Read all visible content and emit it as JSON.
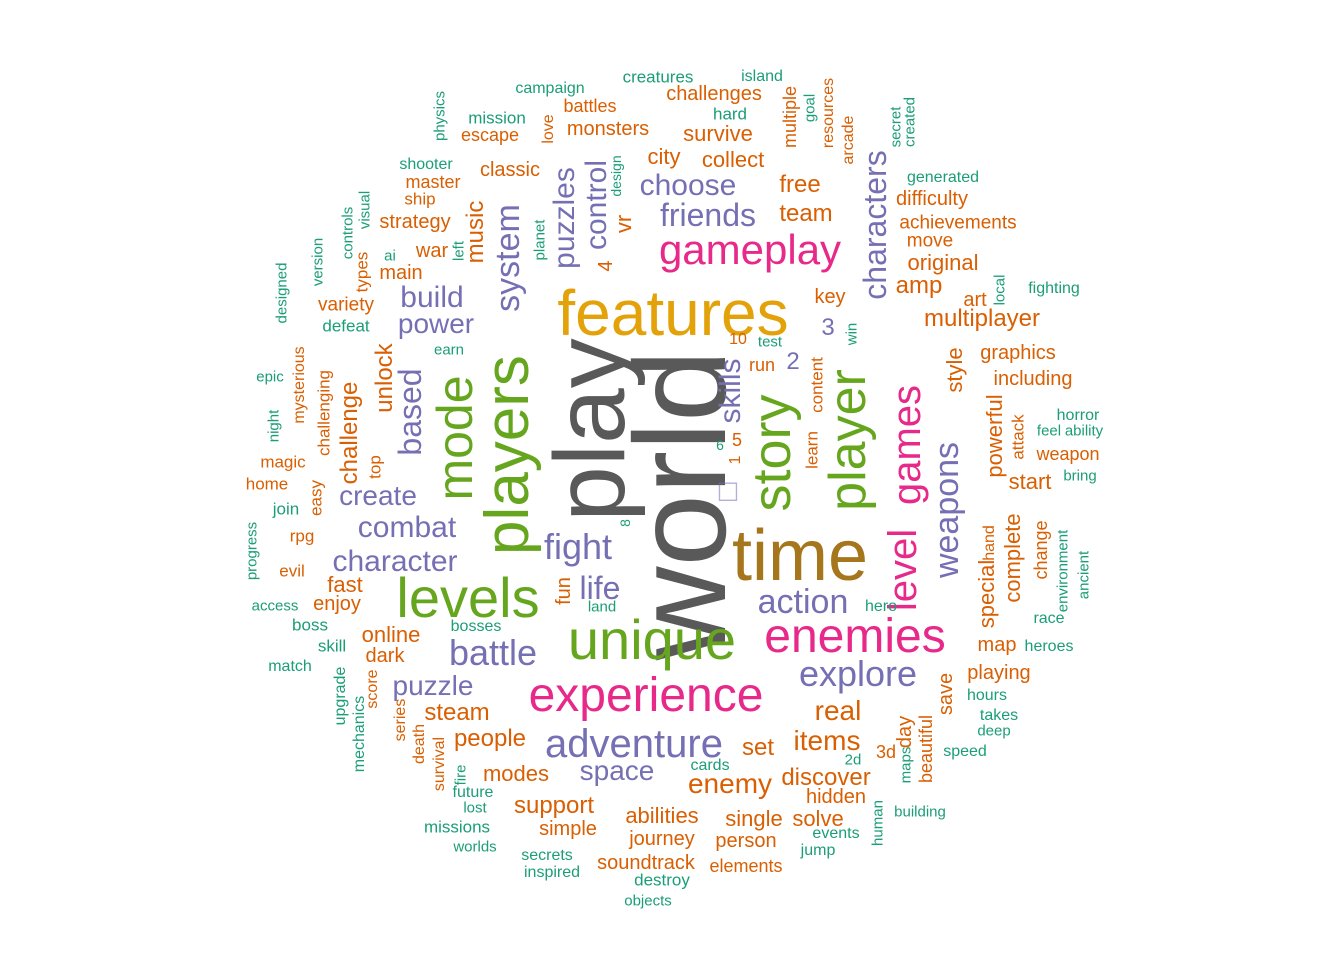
{
  "palette": {
    "dark_gray": "#595959",
    "gold": "#E3A20A",
    "brown": "#A6761D",
    "green": "#66A61E",
    "magenta": "#E7298A",
    "purple": "#7570B3",
    "orange": "#D95F02",
    "teal": "#1B9E77"
  },
  "words": [
    {
      "text": "world",
      "color": "dark_gray"
    },
    {
      "text": "play",
      "color": "dark_gray"
    },
    {
      "text": "features",
      "color": "gold"
    },
    {
      "text": "time",
      "color": "brown"
    },
    {
      "text": "players",
      "color": "green"
    },
    {
      "text": "unique",
      "color": "green"
    },
    {
      "text": "levels",
      "color": "green"
    },
    {
      "text": "mode",
      "color": "green"
    },
    {
      "text": "story",
      "color": "green"
    },
    {
      "text": "player",
      "color": "green"
    },
    {
      "text": "experience",
      "color": "magenta"
    },
    {
      "text": "enemies",
      "color": "magenta"
    },
    {
      "text": "gameplay",
      "color": "magenta"
    },
    {
      "text": "games",
      "color": "magenta"
    },
    {
      "text": "level",
      "color": "magenta"
    },
    {
      "text": "adventure",
      "color": "purple"
    },
    {
      "text": "explore",
      "color": "purple"
    },
    {
      "text": "battle",
      "color": "purple"
    },
    {
      "text": "action",
      "color": "purple"
    },
    {
      "text": "fight",
      "color": "purple"
    },
    {
      "text": "life",
      "color": "purple"
    },
    {
      "text": "character",
      "color": "purple"
    },
    {
      "text": "combat",
      "color": "purple"
    },
    {
      "text": "create",
      "color": "purple"
    },
    {
      "text": "based",
      "color": "purple"
    },
    {
      "text": "build",
      "color": "purple"
    },
    {
      "text": "power",
      "color": "purple"
    },
    {
      "text": "system",
      "color": "purple"
    },
    {
      "text": "choose",
      "color": "purple"
    },
    {
      "text": "friends",
      "color": "purple"
    },
    {
      "text": "puzzles",
      "color": "purple"
    },
    {
      "text": "control",
      "color": "purple"
    },
    {
      "text": "characters",
      "color": "purple"
    },
    {
      "text": "weapons",
      "color": "purple"
    },
    {
      "text": "skills",
      "color": "purple"
    },
    {
      "text": "puzzle",
      "color": "purple"
    },
    {
      "text": "space",
      "color": "purple"
    },
    {
      "text": "3",
      "color": "purple"
    },
    {
      "text": "2",
      "color": "purple"
    },
    {
      "text": "□",
      "color": "purple"
    },
    {
      "text": "challenge",
      "color": "orange"
    },
    {
      "text": "unlock",
      "color": "orange"
    },
    {
      "text": "music",
      "color": "orange"
    },
    {
      "text": "vr",
      "color": "orange"
    },
    {
      "text": "4",
      "color": "orange"
    },
    {
      "text": "team",
      "color": "orange"
    },
    {
      "text": "free",
      "color": "orange"
    },
    {
      "text": "collect",
      "color": "orange"
    },
    {
      "text": "city",
      "color": "orange"
    },
    {
      "text": "survive",
      "color": "orange"
    },
    {
      "text": "monsters",
      "color": "orange"
    },
    {
      "text": "battles",
      "color": "orange"
    },
    {
      "text": "challenges",
      "color": "orange"
    },
    {
      "text": "escape",
      "color": "orange"
    },
    {
      "text": "classic",
      "color": "orange"
    },
    {
      "text": "master",
      "color": "orange"
    },
    {
      "text": "ship",
      "color": "orange"
    },
    {
      "text": "strategy",
      "color": "orange"
    },
    {
      "text": "war",
      "color": "orange"
    },
    {
      "text": "main",
      "color": "orange"
    },
    {
      "text": "variety",
      "color": "orange"
    },
    {
      "text": "multiple",
      "color": "orange"
    },
    {
      "text": "love",
      "color": "orange"
    },
    {
      "text": "resources",
      "color": "orange"
    },
    {
      "text": "arcade",
      "color": "orange"
    },
    {
      "text": "difficulty",
      "color": "orange"
    },
    {
      "text": "achievements",
      "color": "orange"
    },
    {
      "text": "move",
      "color": "orange"
    },
    {
      "text": "original",
      "color": "orange"
    },
    {
      "text": "amp",
      "color": "orange"
    },
    {
      "text": "key",
      "color": "orange"
    },
    {
      "text": "art",
      "color": "orange"
    },
    {
      "text": "multiplayer",
      "color": "orange"
    },
    {
      "text": "graphics",
      "color": "orange"
    },
    {
      "text": "style",
      "color": "orange"
    },
    {
      "text": "including",
      "color": "orange"
    },
    {
      "text": "powerful",
      "color": "orange"
    },
    {
      "text": "attack",
      "color": "orange"
    },
    {
      "text": "start",
      "color": "orange"
    },
    {
      "text": "weapon",
      "color": "orange"
    },
    {
      "text": "hand",
      "color": "orange"
    },
    {
      "text": "complete",
      "color": "orange"
    },
    {
      "text": "special",
      "color": "orange"
    },
    {
      "text": "change",
      "color": "orange"
    },
    {
      "text": "map",
      "color": "orange"
    },
    {
      "text": "playing",
      "color": "orange"
    },
    {
      "text": "save",
      "color": "orange"
    },
    {
      "text": "day",
      "color": "orange"
    },
    {
      "text": "beautiful",
      "color": "orange"
    },
    {
      "text": "3d",
      "color": "orange"
    },
    {
      "text": "real",
      "color": "orange"
    },
    {
      "text": "items",
      "color": "orange"
    },
    {
      "text": "set",
      "color": "orange"
    },
    {
      "text": "enemy",
      "color": "orange"
    },
    {
      "text": "discover",
      "color": "orange"
    },
    {
      "text": "hidden",
      "color": "orange"
    },
    {
      "text": "single",
      "color": "orange"
    },
    {
      "text": "solve",
      "color": "orange"
    },
    {
      "text": "person",
      "color": "orange"
    },
    {
      "text": "abilities",
      "color": "orange"
    },
    {
      "text": "journey",
      "color": "orange"
    },
    {
      "text": "soundtrack",
      "color": "orange"
    },
    {
      "text": "elements",
      "color": "orange"
    },
    {
      "text": "support",
      "color": "orange"
    },
    {
      "text": "simple",
      "color": "orange"
    },
    {
      "text": "modes",
      "color": "orange"
    },
    {
      "text": "people",
      "color": "orange"
    },
    {
      "text": "steam",
      "color": "orange"
    },
    {
      "text": "online",
      "color": "orange"
    },
    {
      "text": "dark",
      "color": "orange"
    },
    {
      "text": "enjoy",
      "color": "orange"
    },
    {
      "text": "fast",
      "color": "orange"
    },
    {
      "text": "fun",
      "color": "orange"
    },
    {
      "text": "run",
      "color": "orange"
    },
    {
      "text": "learn",
      "color": "orange"
    },
    {
      "text": "content",
      "color": "orange"
    },
    {
      "text": "10",
      "color": "orange"
    },
    {
      "text": "5",
      "color": "orange"
    },
    {
      "text": "1",
      "color": "orange"
    },
    {
      "text": "magic",
      "color": "orange"
    },
    {
      "text": "home",
      "color": "orange"
    },
    {
      "text": "rpg",
      "color": "orange"
    },
    {
      "text": "evil",
      "color": "orange"
    },
    {
      "text": "easy",
      "color": "orange"
    },
    {
      "text": "top",
      "color": "orange"
    },
    {
      "text": "challenging",
      "color": "orange"
    },
    {
      "text": "mysterious",
      "color": "orange"
    },
    {
      "text": "types",
      "color": "orange"
    },
    {
      "text": "score",
      "color": "orange"
    },
    {
      "text": "series",
      "color": "orange"
    },
    {
      "text": "death",
      "color": "orange"
    },
    {
      "text": "survival",
      "color": "orange"
    },
    {
      "text": "creatures",
      "color": "teal"
    },
    {
      "text": "island",
      "color": "teal"
    },
    {
      "text": "campaign",
      "color": "teal"
    },
    {
      "text": "hard",
      "color": "teal"
    },
    {
      "text": "mission",
      "color": "teal"
    },
    {
      "text": "physics",
      "color": "teal"
    },
    {
      "text": "goal",
      "color": "teal"
    },
    {
      "text": "secret",
      "color": "teal"
    },
    {
      "text": "created",
      "color": "teal"
    },
    {
      "text": "shooter",
      "color": "teal"
    },
    {
      "text": "design",
      "color": "teal"
    },
    {
      "text": "generated",
      "color": "teal"
    },
    {
      "text": "visual",
      "color": "teal"
    },
    {
      "text": "controls",
      "color": "teal"
    },
    {
      "text": "version",
      "color": "teal"
    },
    {
      "text": "ai",
      "color": "teal"
    },
    {
      "text": "left",
      "color": "teal"
    },
    {
      "text": "planet",
      "color": "teal"
    },
    {
      "text": "designed",
      "color": "teal"
    },
    {
      "text": "defeat",
      "color": "teal"
    },
    {
      "text": "local",
      "color": "teal"
    },
    {
      "text": "fighting",
      "color": "teal"
    },
    {
      "text": "win",
      "color": "teal"
    },
    {
      "text": "test",
      "color": "teal"
    },
    {
      "text": "earn",
      "color": "teal"
    },
    {
      "text": "epic",
      "color": "teal"
    },
    {
      "text": "night",
      "color": "teal"
    },
    {
      "text": "horror",
      "color": "teal"
    },
    {
      "text": "feel",
      "color": "teal"
    },
    {
      "text": "ability",
      "color": "teal"
    },
    {
      "text": "bring",
      "color": "teal"
    },
    {
      "text": "environment",
      "color": "teal"
    },
    {
      "text": "ancient",
      "color": "teal"
    },
    {
      "text": "join",
      "color": "teal"
    },
    {
      "text": "progress",
      "color": "teal"
    },
    {
      "text": "access",
      "color": "teal"
    },
    {
      "text": "boss",
      "color": "teal"
    },
    {
      "text": "skill",
      "color": "teal"
    },
    {
      "text": "match",
      "color": "teal"
    },
    {
      "text": "bosses",
      "color": "teal"
    },
    {
      "text": "land",
      "color": "teal"
    },
    {
      "text": "hero",
      "color": "teal"
    },
    {
      "text": "race",
      "color": "teal"
    },
    {
      "text": "heroes",
      "color": "teal"
    },
    {
      "text": "hours",
      "color": "teal"
    },
    {
      "text": "takes",
      "color": "teal"
    },
    {
      "text": "deep",
      "color": "teal"
    },
    {
      "text": "speed",
      "color": "teal"
    },
    {
      "text": "upgrade",
      "color": "teal"
    },
    {
      "text": "mechanics",
      "color": "teal"
    },
    {
      "text": "fire",
      "color": "teal"
    },
    {
      "text": "future",
      "color": "teal"
    },
    {
      "text": "lost",
      "color": "teal"
    },
    {
      "text": "missions",
      "color": "teal"
    },
    {
      "text": "worlds",
      "color": "teal"
    },
    {
      "text": "secrets",
      "color": "teal"
    },
    {
      "text": "inspired",
      "color": "teal"
    },
    {
      "text": "destroy",
      "color": "teal"
    },
    {
      "text": "objects",
      "color": "teal"
    },
    {
      "text": "cards",
      "color": "teal"
    },
    {
      "text": "2d",
      "color": "teal"
    },
    {
      "text": "maps",
      "color": "teal"
    },
    {
      "text": "human",
      "color": "teal"
    },
    {
      "text": "events",
      "color": "teal"
    },
    {
      "text": "jump",
      "color": "teal"
    },
    {
      "text": "building",
      "color": "teal"
    },
    {
      "text": "6",
      "color": "teal"
    },
    {
      "text": "8",
      "color": "teal"
    }
  ]
}
